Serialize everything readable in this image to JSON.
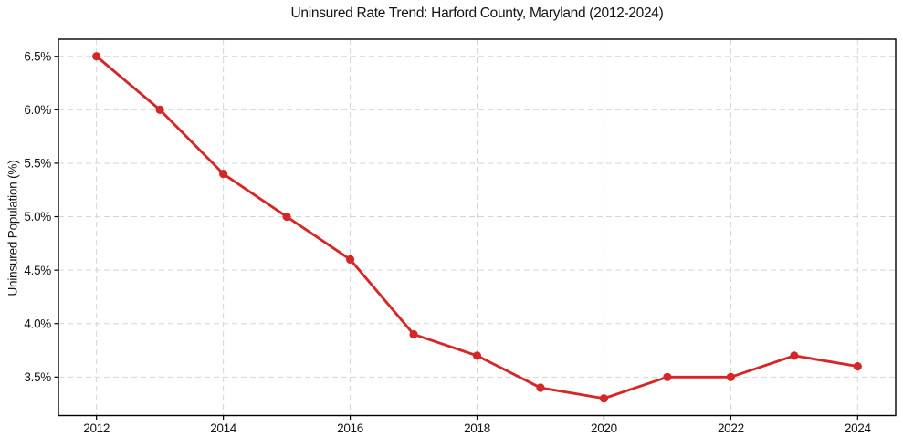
{
  "chart_data": {
    "type": "line",
    "title": "Uninsured Rate Trend: Harford County, Maryland (2012-2024)",
    "xlabel": "",
    "ylabel": "Uninsured Population (%)",
    "x": [
      2012,
      2013,
      2014,
      2015,
      2016,
      2017,
      2018,
      2019,
      2020,
      2021,
      2022,
      2023,
      2024
    ],
    "values": [
      6.5,
      6.0,
      5.4,
      5.0,
      4.6,
      3.9,
      3.7,
      3.4,
      3.3,
      3.5,
      3.5,
      3.7,
      3.6
    ],
    "xticks": [
      2012,
      2014,
      2016,
      2018,
      2020,
      2022,
      2024
    ],
    "xtick_labels": [
      "2012",
      "2014",
      "2016",
      "2018",
      "2020",
      "2022",
      "2024"
    ],
    "yticks": [
      3.5,
      4.0,
      4.5,
      5.0,
      5.5,
      6.0,
      6.5
    ],
    "ytick_labels": [
      "3.5%",
      "4.0%",
      "4.5%",
      "5.0%",
      "5.5%",
      "6.0%",
      "6.5%"
    ],
    "xlim": [
      2011.4,
      2024.6
    ],
    "ylim": [
      3.14,
      6.66
    ],
    "grid": true,
    "grid_style": "dashed",
    "legend": "none",
    "colors": {
      "line": "#d62728",
      "marker": "#d62728",
      "grid": "#d5d5d5",
      "axis": "#000000",
      "text": "#141414",
      "background": "#ffffff"
    }
  }
}
